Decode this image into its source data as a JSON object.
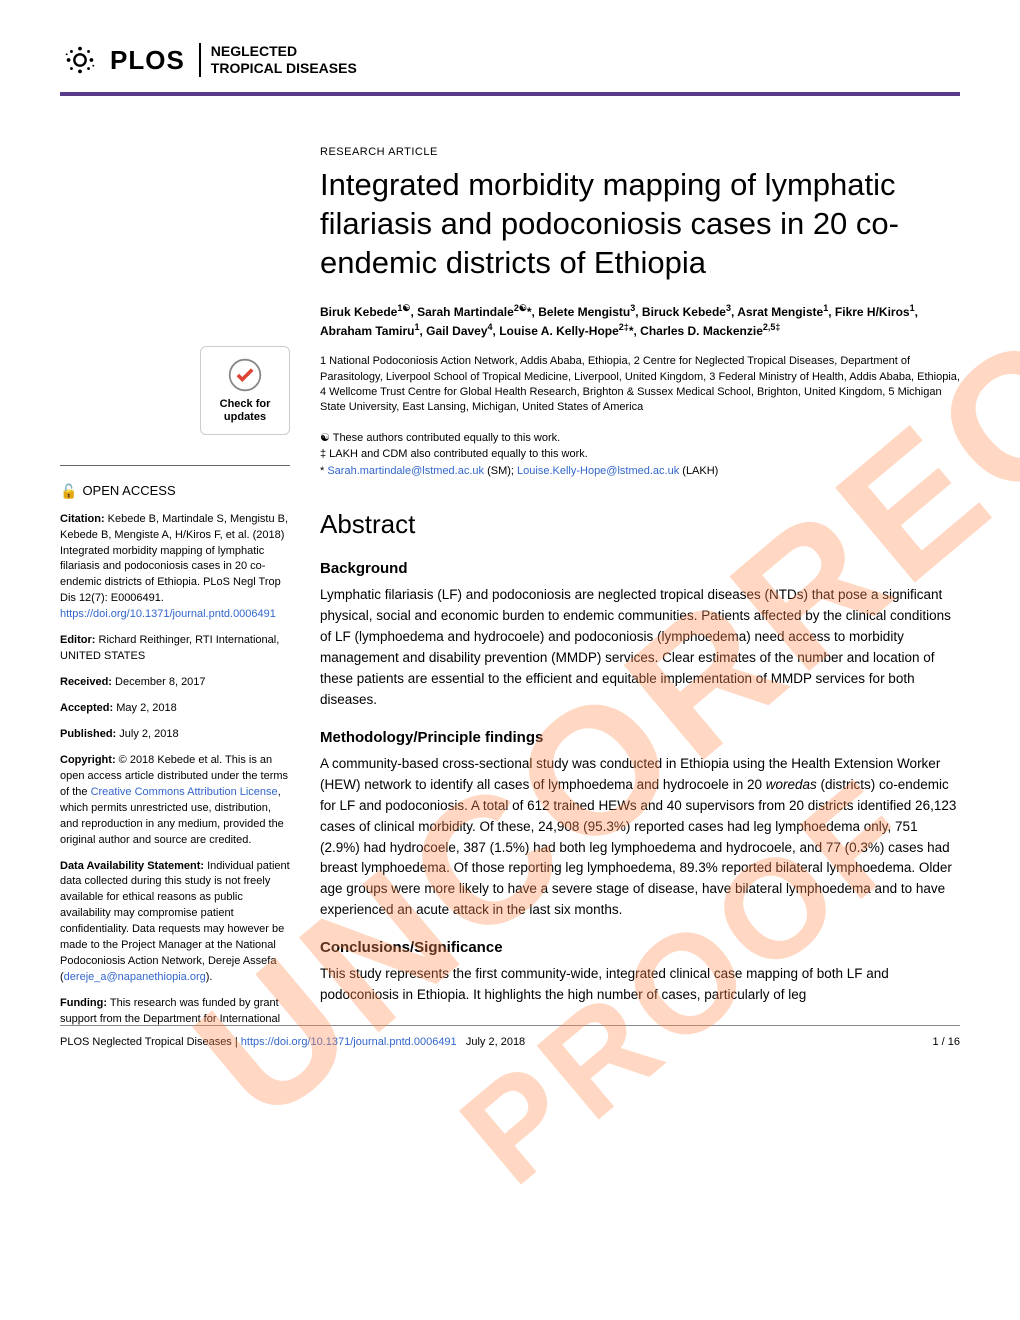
{
  "header": {
    "plos": "PLOS",
    "journal_line1": "NEGLECTED",
    "journal_line2": "TROPICAL DISEASES"
  },
  "watermark": {
    "text1": "UNCORRECTED",
    "text2": "PROOF"
  },
  "sidebar": {
    "check_updates": "Check for updates",
    "open_access": "OPEN ACCESS",
    "citation_label": "Citation:",
    "citation": " Kebede B, Martindale S, Mengistu B, Kebede B, Mengiste A, H/Kiros F, et al. (2018) Integrated morbidity mapping of lymphatic filariasis and podoconiosis cases in 20 co-endemic districts of Ethiopia. PLoS Negl Trop Dis 12(7): E0006491. ",
    "citation_link": "https://doi.org/10.1371/journal.pntd.0006491",
    "editor_label": "Editor:",
    "editor": " Richard Reithinger, RTI International, UNITED STATES",
    "received_label": "Received:",
    "received": " December 8, 2017",
    "accepted_label": "Accepted:",
    "accepted": " May 2, 2018",
    "published_label": "Published:",
    "published": " July 2, 2018",
    "copyright_label": "Copyright:",
    "copyright_pre": " © 2018 Kebede et al. This is an open access article distributed under the terms of the ",
    "copyright_link": "Creative Commons Attribution License",
    "copyright_post": ", which permits unrestricted use, distribution, and reproduction in any medium, provided the original author and source are credited.",
    "data_label": "Data Availability Statement:",
    "data_text": " Individual patient data collected during this study is not freely available for ethical reasons as public availability may compromise patient confidentiality. Data requests may however be made to the Project Manager at the National Podoconiosis Action Network, Dereje Assefa (",
    "data_email": "dereje_a@napanethiopia.org",
    "data_close": ").",
    "funding_label": "Funding:",
    "funding": " This research was funded by grant support from the Department for International"
  },
  "article": {
    "type": "RESEARCH ARTICLE",
    "title": "Integrated morbidity mapping of lymphatic filariasis and podoconiosis cases in 20 co-endemic districts of Ethiopia",
    "authors_html": "Biruk Kebede<sup>1☯</sup>, Sarah Martindale<sup>2☯</sup>*, Belete Mengistu<sup>3</sup>, Biruck Kebede<sup>3</sup>, Asrat Mengiste<sup>1</sup>, Fikre H/Kiros<sup>1</sup>, Abraham Tamiru<sup>1</sup>, Gail Davey<sup>4</sup>, Louise A. Kelly-Hope<sup>2‡</sup>*, Charles D. Mackenzie<sup>2,5‡</sup>",
    "affiliations": "1 National Podoconiosis Action Network, Addis Ababa, Ethiopia, 2 Centre for Neglected Tropical Diseases, Department of Parasitology, Liverpool School of Tropical Medicine, Liverpool, United Kingdom, 3 Federal Ministry of Health, Addis Ababa, Ethiopia, 4 Wellcome Trust Centre for Global Health Research, Brighton & Sussex Medical School, Brighton, United Kingdom, 5 Michigan State University, East Lansing, Michigan, United States of America",
    "note1": "☯ These authors contributed equally to this work.",
    "note2": "‡ LAKH and CDM also contributed equally to this work.",
    "note3_pre": "* ",
    "note3_email1": "Sarah.martindale@lstmed.ac.uk",
    "note3_mid": " (SM); ",
    "note3_email2": "Louise.Kelly-Hope@lstmed.ac.uk",
    "note3_post": " (LAKH)",
    "abstract_heading": "Abstract",
    "bg_heading": "Background",
    "bg_text": "Lymphatic filariasis (LF) and podoconiosis are neglected tropical diseases (NTDs) that pose a significant physical, social and economic burden to endemic communities. Patients affected by the clinical conditions of LF (lymphoedema and hydrocoele) and podoconiosis (lymphoedema) need access to morbidity management and disability prevention (MMDP) services. Clear estimates of the number and location of these patients are essential to the efficient and equitable implementation of MMDP services for both diseases.",
    "meth_heading": "Methodology/Principle findings",
    "meth_text": "A community-based cross-sectional study was conducted in Ethiopia using the Health Extension Worker (HEW) network to identify all cases of lymphoedema and hydrocoele in 20 woredas (districts) co-endemic for LF and podoconiosis. A total of 612 trained HEWs and 40 supervisors from 20 districts identified 26,123 cases of clinical morbidity. Of these, 24,908 (95.3%) reported cases had leg lymphoedema only, 751 (2.9%) had hydrocoele, 387 (1.5%) had both leg lymphoedema and hydrocoele, and 77 (0.3%) cases had breast lymphoedema. Of those reporting leg lymphoedema, 89.3% reported bilateral lymphoedema. Older age groups were more likely to have a severe stage of disease, have bilateral lymphoedema and to have experienced an acute attack in the last six months.",
    "conc_heading": "Conclusions/Significance",
    "conc_text": "This study represents the first community-wide, integrated clinical case mapping of both LF and podoconiosis in Ethiopia. It highlights the high number of cases, particularly of leg"
  },
  "footer": {
    "journal": "PLOS Neglected Tropical Diseases | ",
    "doi": "https://doi.org/10.1371/journal.pntd.0006491",
    "date": "July 2, 2018",
    "page": "1 / 16"
  },
  "colors": {
    "purple": "#5a3b8a",
    "link": "#3366cc",
    "watermark": "rgba(255,140,80,0.35)"
  }
}
